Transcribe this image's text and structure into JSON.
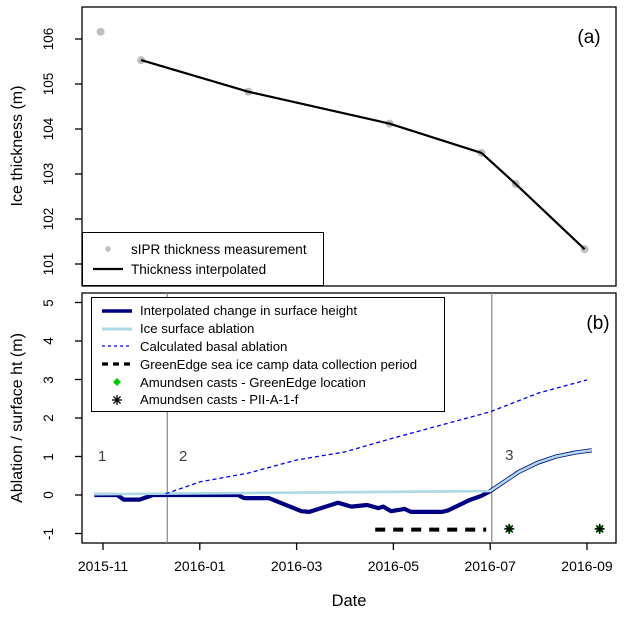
{
  "figure": {
    "panel_a_tag": "(a)",
    "panel_b_tag": "(b)",
    "x_axis_title": "Date",
    "colors": {
      "navy": "#000080",
      "light_blue": "#ADD8E6",
      "basal_blue": "#0000EE",
      "black": "#000000",
      "gray_point": "#BEBEBE",
      "gray_vline": "#878787",
      "green": "#00C800"
    }
  },
  "chart_data": [
    {
      "type": "line",
      "panel": "a",
      "ylabel": "Ice thickness (m)",
      "ylim": [
        100.5,
        106.7
      ],
      "yticks": [
        106,
        105,
        104,
        103,
        102,
        101
      ],
      "x_type": "date",
      "xlim": [
        "2015-10-19",
        "2016-09-18"
      ],
      "grid": false,
      "series": [
        {
          "name": "sIPR thickness measurement",
          "kind": "points",
          "color": "#BEBEBE",
          "size": 4,
          "points": [
            [
              "2015-10-30",
              106.16
            ],
            [
              "2015-11-25",
              105.53
            ],
            [
              "2016-02-01",
              104.83
            ],
            [
              "2016-04-29",
              104.12
            ],
            [
              "2016-06-26",
              103.47
            ],
            [
              "2016-07-17",
              102.78
            ],
            [
              "2016-08-30",
              101.33
            ]
          ]
        },
        {
          "name": "Thickness interpolated",
          "kind": "line",
          "color": "#000000",
          "width": 2.2,
          "points": [
            [
              "2015-11-25",
              105.53
            ],
            [
              "2016-02-01",
              104.83
            ],
            [
              "2016-04-29",
              104.12
            ],
            [
              "2016-06-26",
              103.47
            ],
            [
              "2016-07-17",
              102.78
            ],
            [
              "2016-08-30",
              101.33
            ]
          ]
        }
      ],
      "legend": {
        "position": "bottom-left",
        "items": [
          {
            "label": "sIPR thickness measurement",
            "swatch": "point",
            "color": "#BEBEBE",
            "icon": "gray-point-key-icon"
          },
          {
            "label": "Thickness interpolated",
            "swatch": "line",
            "color": "#000000",
            "width": 2.2,
            "icon": "black-line-key-icon"
          }
        ]
      }
    },
    {
      "type": "line",
      "panel": "b",
      "ylabel": "Ablation / surface ht (m)",
      "ylim": [
        -1.25,
        5.25
      ],
      "yticks": [
        5,
        4,
        3,
        2,
        1,
        0,
        -1
      ],
      "x_type": "date",
      "xlim": [
        "2015-10-19",
        "2016-09-18"
      ],
      "grid": false,
      "xticks": [
        {
          "x": "2015-11-01",
          "label": "2015-11"
        },
        {
          "x": "2016-01-01",
          "label": "2016-01"
        },
        {
          "x": "2016-03-01",
          "label": "2016-03"
        },
        {
          "x": "2016-05-01",
          "label": "2016-05"
        },
        {
          "x": "2016-07-01",
          "label": "2016-07"
        },
        {
          "x": "2016-09-01",
          "label": "2016-09"
        }
      ],
      "series": [
        {
          "name": "Interpolated change in surface height",
          "kind": "line",
          "color": "#000080",
          "width": 4.2,
          "points": [
            [
              "2015-10-26",
              0.0
            ],
            [
              "2015-11-10",
              0.0
            ],
            [
              "2015-11-14",
              -0.12
            ],
            [
              "2015-11-24",
              -0.12
            ],
            [
              "2015-12-02",
              0.0
            ],
            [
              "2016-01-25",
              0.0
            ],
            [
              "2016-01-29",
              -0.08
            ],
            [
              "2016-02-14",
              -0.08
            ],
            [
              "2016-03-04",
              -0.42
            ],
            [
              "2016-03-09",
              -0.44
            ],
            [
              "2016-03-27",
              -0.2
            ],
            [
              "2016-04-05",
              -0.3
            ],
            [
              "2016-04-15",
              -0.26
            ],
            [
              "2016-04-22",
              -0.34
            ],
            [
              "2016-04-25",
              -0.3
            ],
            [
              "2016-04-30",
              -0.42
            ],
            [
              "2016-05-08",
              -0.36
            ],
            [
              "2016-05-12",
              -0.44
            ],
            [
              "2016-06-01",
              -0.44
            ],
            [
              "2016-06-05",
              -0.4
            ],
            [
              "2016-06-11",
              -0.28
            ],
            [
              "2016-06-18",
              -0.14
            ],
            [
              "2016-06-26",
              -0.02
            ],
            [
              "2016-07-01",
              0.1
            ],
            [
              "2016-07-10",
              0.35
            ],
            [
              "2016-07-19",
              0.6
            ],
            [
              "2016-07-31",
              0.84
            ],
            [
              "2016-08-12",
              1.0
            ],
            [
              "2016-08-24",
              1.1
            ],
            [
              "2016-09-04",
              1.16
            ]
          ]
        },
        {
          "name": "Ice surface ablation",
          "kind": "line",
          "color": "#ADD8E6",
          "width": 2.6,
          "points": [
            [
              "2015-10-26",
              0.02
            ],
            [
              "2016-07-01",
              0.1
            ],
            [
              "2016-07-10",
              0.35
            ],
            [
              "2016-07-19",
              0.6
            ],
            [
              "2016-07-31",
              0.84
            ],
            [
              "2016-08-12",
              1.0
            ],
            [
              "2016-08-24",
              1.1
            ],
            [
              "2016-09-04",
              1.16
            ]
          ]
        },
        {
          "name": "Calculated basal ablation",
          "kind": "line",
          "color": "#0000EE",
          "width": 1.3,
          "dash": "4,3",
          "points": [
            [
              "2015-12-10",
              0.03
            ],
            [
              "2016-01-01",
              0.34
            ],
            [
              "2016-02-01",
              0.57
            ],
            [
              "2016-03-01",
              0.91
            ],
            [
              "2016-04-01",
              1.12
            ],
            [
              "2016-05-01",
              1.48
            ],
            [
              "2016-06-01",
              1.82
            ],
            [
              "2016-07-01",
              2.16
            ],
            [
              "2016-08-01",
              2.65
            ],
            [
              "2016-09-01",
              2.99
            ]
          ]
        },
        {
          "name": "GreenEdge sea ice camp data collection period",
          "kind": "line",
          "color": "#000000",
          "width": 4,
          "dash": "10,8",
          "points": [
            [
              "2016-04-20",
              -0.9
            ],
            [
              "2016-06-29",
              -0.9
            ]
          ]
        },
        {
          "name": "Amundsen casts - GreenEdge location",
          "kind": "diamond",
          "color": "#00C800",
          "size": 4.5,
          "points": [
            [
              "2016-07-13",
              -0.88
            ],
            [
              "2016-09-09",
              -0.88
            ]
          ]
        },
        {
          "name": "Amundsen casts - PII-A-1-f",
          "kind": "asterisk",
          "color": "#000000",
          "size": 5,
          "points": [
            [
              "2016-07-13",
              -0.88
            ],
            [
              "2016-09-09",
              -0.88
            ]
          ]
        }
      ],
      "annotations": {
        "vlines": [
          "2015-12-11",
          "2016-07-02"
        ],
        "vline_color": "#878787",
        "period_labels": [
          {
            "text": "1",
            "x": "2015-10-31",
            "y": 0.98
          },
          {
            "text": "2",
            "x": "2015-12-21",
            "y": 0.98
          },
          {
            "text": "3",
            "x": "2016-07-13",
            "y": 1.02
          }
        ]
      },
      "legend": {
        "position": "top-left",
        "items": [
          {
            "label": "Interpolated change in surface height",
            "swatch": "line",
            "color": "#000080",
            "width": 3.6,
            "icon": "navy-line-key-icon"
          },
          {
            "label": "Ice surface ablation",
            "swatch": "line",
            "color": "#ADD8E6",
            "width": 3,
            "icon": "lightblue-line-key-icon"
          },
          {
            "label": "Calculated basal ablation",
            "swatch": "line",
            "color": "#0000EE",
            "width": 1.3,
            "dash": "3,3",
            "icon": "blue-dashed-line-key-icon"
          },
          {
            "label": "GreenEdge sea ice camp data collection period",
            "swatch": "line",
            "color": "#000000",
            "width": 3.2,
            "dash": "6,5",
            "icon": "black-dashed-line-key-icon"
          },
          {
            "label": "Amundsen casts - GreenEdge location",
            "swatch": "diamond",
            "color": "#00C800",
            "icon": "green-diamond-key-icon"
          },
          {
            "label": "Amundsen casts - PII-A-1-f",
            "swatch": "asterisk",
            "color": "#000000",
            "icon": "asterisk-key-icon"
          }
        ]
      }
    }
  ]
}
